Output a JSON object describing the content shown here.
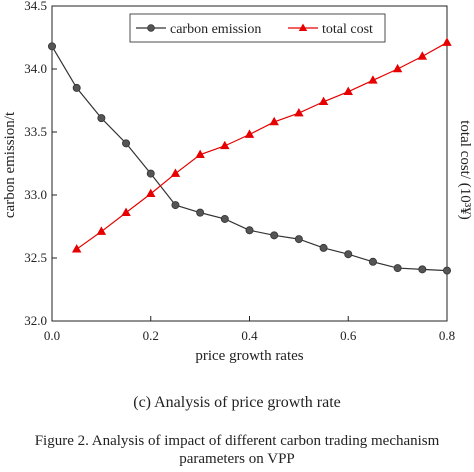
{
  "chart_data": {
    "type": "line",
    "xlabel": "price growth rates",
    "ylabel": "carbon emission/t",
    "y2label": "total cost/ (10³¥)",
    "xlim": [
      0.0,
      0.8
    ],
    "ylim": [
      32.0,
      34.5
    ],
    "xticks": [
      "0.0",
      "0.2",
      "0.4",
      "0.6",
      "0.8"
    ],
    "yticks": [
      "32.0",
      "32.5",
      "33.0",
      "33.5",
      "34.0",
      "34.5"
    ],
    "grid": false,
    "legend_position": "top",
    "series": [
      {
        "name": "carbon emission",
        "color": "#333333",
        "marker": "circle",
        "axis": "left",
        "x": [
          0.0,
          0.05,
          0.1,
          0.15,
          0.2,
          0.25,
          0.3,
          0.35,
          0.4,
          0.45,
          0.5,
          0.55,
          0.6,
          0.65,
          0.7,
          0.75,
          0.8
        ],
        "values": [
          34.18,
          33.85,
          33.61,
          33.41,
          33.17,
          32.92,
          32.86,
          32.81,
          32.72,
          32.68,
          32.65,
          32.58,
          32.53,
          32.47,
          32.42,
          32.41,
          32.4
        ]
      },
      {
        "name": "total cost",
        "color": "#e60000",
        "marker": "triangle",
        "axis": "right",
        "x": [
          0.05,
          0.1,
          0.15,
          0.2,
          0.25,
          0.3,
          0.35,
          0.4,
          0.45,
          0.5,
          0.55,
          0.6,
          0.65,
          0.7,
          0.75,
          0.8
        ],
        "values_in_left_axis_scale": [
          32.57,
          32.71,
          32.86,
          33.01,
          33.17,
          33.32,
          33.39,
          33.48,
          33.58,
          33.65,
          33.74,
          33.82,
          33.91,
          34.0,
          34.1,
          34.21
        ]
      }
    ]
  },
  "captions": {
    "subcaption": "(c) Analysis of price growth rate",
    "figure_line1": "Figure 2. Analysis of impact of different carbon trading mechanism",
    "figure_line2": "parameters on VPP"
  }
}
